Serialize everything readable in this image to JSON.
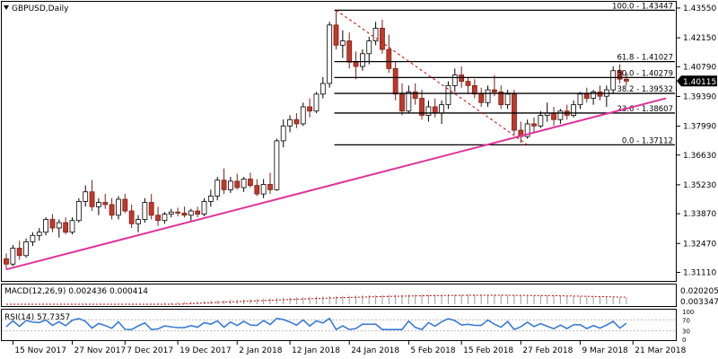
{
  "chart_data": {
    "type": "candlestick",
    "symbol_label": "GBPUSD,Daily",
    "y_axis": {
      "ticks": [
        "1.43550",
        "1.42150",
        "1.40790",
        "1.39390",
        "1.37990",
        "1.36630",
        "1.35230",
        "1.33870",
        "1.32470",
        "1.31110"
      ],
      "tick_values": [
        1.4355,
        1.4215,
        1.4079,
        1.3939,
        1.3799,
        1.3663,
        1.3523,
        1.3387,
        1.3247,
        1.3111
      ],
      "ylim": [
        1.3075,
        1.438
      ],
      "current_price": "1.40115",
      "current_price_value": 1.40115
    },
    "x_axis": {
      "ticks": [
        "15 Nov 2017",
        "27 Nov 2017",
        "7 Dec 2017",
        "19 Dec 2017",
        "2 Jan 2018",
        "12 Jan 2018",
        "24 Jan 2018",
        "5 Feb 2018",
        "15 Feb 2018",
        "27 Feb 2018",
        "9 Mar 2018",
        "21 Mar 2018"
      ],
      "tick_bar_index": [
        1,
        10,
        18,
        26,
        35,
        43,
        52,
        61,
        69,
        78,
        87,
        95
      ]
    },
    "candles": [
      [
        1.3175,
        1.32,
        1.3125,
        1.315
      ],
      [
        1.315,
        1.324,
        1.314,
        1.3225
      ],
      [
        1.3225,
        1.326,
        1.317,
        1.319
      ],
      [
        1.319,
        1.327,
        1.318,
        1.3255
      ],
      [
        1.3255,
        1.33,
        1.3235,
        1.3285
      ],
      [
        1.3285,
        1.332,
        1.326,
        1.33
      ],
      [
        1.33,
        1.337,
        1.3285,
        1.336
      ],
      [
        1.336,
        1.3385,
        1.33,
        1.332
      ],
      [
        1.332,
        1.336,
        1.3275,
        1.3345
      ],
      [
        1.3345,
        1.337,
        1.329,
        1.33
      ],
      [
        1.33,
        1.337,
        1.329,
        1.3355
      ],
      [
        1.3355,
        1.346,
        1.3345,
        1.3445
      ],
      [
        1.3445,
        1.352,
        1.342,
        1.349
      ],
      [
        1.349,
        1.3545,
        1.34,
        1.342
      ],
      [
        1.342,
        1.346,
        1.338,
        1.344
      ],
      [
        1.344,
        1.348,
        1.341,
        1.343
      ],
      [
        1.343,
        1.346,
        1.336,
        1.338
      ],
      [
        1.338,
        1.347,
        1.336,
        1.3455
      ],
      [
        1.3455,
        1.348,
        1.339,
        1.34
      ],
      [
        1.34,
        1.343,
        1.332,
        1.334
      ],
      [
        1.334,
        1.338,
        1.33,
        1.336
      ],
      [
        1.336,
        1.346,
        1.3345,
        1.344
      ],
      [
        1.344,
        1.348,
        1.336,
        1.338
      ],
      [
        1.338,
        1.342,
        1.333,
        1.3355
      ],
      [
        1.3355,
        1.3395,
        1.334,
        1.3385
      ],
      [
        1.3385,
        1.341,
        1.337,
        1.3395
      ],
      [
        1.3395,
        1.3415,
        1.3375,
        1.339
      ],
      [
        1.339,
        1.342,
        1.337,
        1.338
      ],
      [
        1.338,
        1.341,
        1.3355,
        1.34
      ],
      [
        1.34,
        1.342,
        1.337,
        1.3385
      ],
      [
        1.3385,
        1.346,
        1.3375,
        1.3445
      ],
      [
        1.3445,
        1.35,
        1.342,
        1.347
      ],
      [
        1.347,
        1.356,
        1.345,
        1.3545
      ],
      [
        1.3545,
        1.36,
        1.348,
        1.35
      ],
      [
        1.35,
        1.356,
        1.3485,
        1.354
      ],
      [
        1.354,
        1.3575,
        1.35,
        1.351
      ],
      [
        1.351,
        1.356,
        1.349,
        1.355
      ],
      [
        1.355,
        1.358,
        1.351,
        1.352
      ],
      [
        1.352,
        1.355,
        1.347,
        1.348
      ],
      [
        1.348,
        1.355,
        1.346,
        1.3525
      ],
      [
        1.3525,
        1.358,
        1.348,
        1.35
      ],
      [
        1.35,
        1.374,
        1.3495,
        1.373
      ],
      [
        1.373,
        1.383,
        1.37,
        1.38
      ],
      [
        1.38,
        1.385,
        1.377,
        1.383
      ],
      [
        1.383,
        1.386,
        1.379,
        1.381
      ],
      [
        1.381,
        1.391,
        1.38,
        1.389
      ],
      [
        1.389,
        1.393,
        1.384,
        1.387
      ],
      [
        1.387,
        1.396,
        1.386,
        1.395
      ],
      [
        1.395,
        1.403,
        1.393,
        1.4
      ],
      [
        1.4,
        1.429,
        1.398,
        1.4275
      ],
      [
        1.4275,
        1.4345,
        1.416,
        1.418
      ],
      [
        1.418,
        1.425,
        1.412,
        1.42
      ],
      [
        1.42,
        1.424,
        1.407,
        1.41
      ],
      [
        1.41,
        1.415,
        1.402,
        1.408
      ],
      [
        1.408,
        1.416,
        1.406,
        1.414
      ],
      [
        1.414,
        1.422,
        1.409,
        1.42
      ],
      [
        1.42,
        1.429,
        1.418,
        1.426
      ],
      [
        1.426,
        1.43,
        1.414,
        1.416
      ],
      [
        1.416,
        1.423,
        1.405,
        1.407
      ],
      [
        1.407,
        1.41,
        1.392,
        1.395
      ],
      [
        1.395,
        1.4,
        1.385,
        1.387
      ],
      [
        1.387,
        1.399,
        1.386,
        1.396
      ],
      [
        1.396,
        1.4,
        1.39,
        1.393
      ],
      [
        1.393,
        1.397,
        1.383,
        1.385
      ],
      [
        1.385,
        1.392,
        1.382,
        1.389
      ],
      [
        1.389,
        1.393,
        1.384,
        1.386
      ],
      [
        1.386,
        1.392,
        1.381,
        1.39
      ],
      [
        1.39,
        1.401,
        1.388,
        1.399
      ],
      [
        1.399,
        1.407,
        1.396,
        1.404
      ],
      [
        1.404,
        1.408,
        1.398,
        1.401
      ],
      [
        1.401,
        1.403,
        1.395,
        1.399
      ],
      [
        1.399,
        1.402,
        1.393,
        1.395
      ],
      [
        1.395,
        1.398,
        1.389,
        1.391
      ],
      [
        1.391,
        1.399,
        1.389,
        1.397
      ],
      [
        1.397,
        1.404,
        1.394,
        1.396
      ],
      [
        1.396,
        1.399,
        1.388,
        1.39
      ],
      [
        1.39,
        1.397,
        1.388,
        1.395
      ],
      [
        1.395,
        1.397,
        1.376,
        1.378
      ],
      [
        1.378,
        1.382,
        1.372,
        1.375
      ],
      [
        1.375,
        1.383,
        1.374,
        1.381
      ],
      [
        1.381,
        1.384,
        1.377,
        1.38
      ],
      [
        1.38,
        1.387,
        1.379,
        1.385
      ],
      [
        1.385,
        1.391,
        1.382,
        1.386
      ],
      [
        1.386,
        1.389,
        1.38,
        1.383
      ],
      [
        1.383,
        1.388,
        1.381,
        1.387
      ],
      [
        1.387,
        1.39,
        1.383,
        1.385
      ],
      [
        1.385,
        1.392,
        1.384,
        1.39
      ],
      [
        1.39,
        1.396,
        1.388,
        1.395
      ],
      [
        1.395,
        1.398,
        1.391,
        1.393
      ],
      [
        1.393,
        1.397,
        1.39,
        1.396
      ],
      [
        1.396,
        1.399,
        1.392,
        1.394
      ],
      [
        1.394,
        1.399,
        1.389,
        1.397
      ],
      [
        1.397,
        1.408,
        1.395,
        1.406
      ],
      [
        1.406,
        1.409,
        1.4,
        1.402
      ],
      [
        1.402,
        1.405,
        1.399,
        1.4011
      ]
    ],
    "fibonacci": {
      "levels": [
        {
          "label": "100.0 - 1.43447",
          "value": 1.43447
        },
        {
          "label": "61.8 - 1.41027",
          "value": 1.41027
        },
        {
          "label": "50.0 - 1.40279",
          "value": 1.40279
        },
        {
          "label": "38.2 - 1.39532",
          "value": 1.39532
        },
        {
          "label": "23.6 - 1.38607",
          "value": 1.38607
        },
        {
          "label": "0.0 - 1.37112",
          "value": 1.37112
        }
      ],
      "start_bar": 50,
      "end_bar": 96
    },
    "trendline": {
      "color": "#e0339a",
      "from": {
        "bar": 0,
        "value": 1.3125
      },
      "to": {
        "bar": 100,
        "value": 1.393
      }
    },
    "retracement_line": {
      "color": "#cc0000",
      "from": {
        "bar": 50,
        "value": 1.43447
      },
      "to": {
        "bar": 79,
        "value": 1.37112
      }
    },
    "colors": {
      "bull_body": "#ffffff",
      "bull_border": "#000000",
      "bear_body": "#c0392b",
      "bear_border": "#7a1f15",
      "wick_bull": "#000000",
      "wick_bear": "#7a1f15",
      "rsi_line": "#3a7bd5",
      "macd_signal": "#cc0000"
    },
    "macd": {
      "label": "MACD(12,26,9) 0.002436 0.000414",
      "ticks": [
        "0.020205",
        "0.003347"
      ],
      "tick_values": [
        0.020205,
        0.003347
      ]
    },
    "rsi": {
      "label": "RSI(14) 57.7357",
      "ticks": [
        "100",
        "70",
        "30",
        "0"
      ],
      "tick_values": [
        100,
        70,
        30,
        0
      ],
      "value": 57.7357
    }
  }
}
